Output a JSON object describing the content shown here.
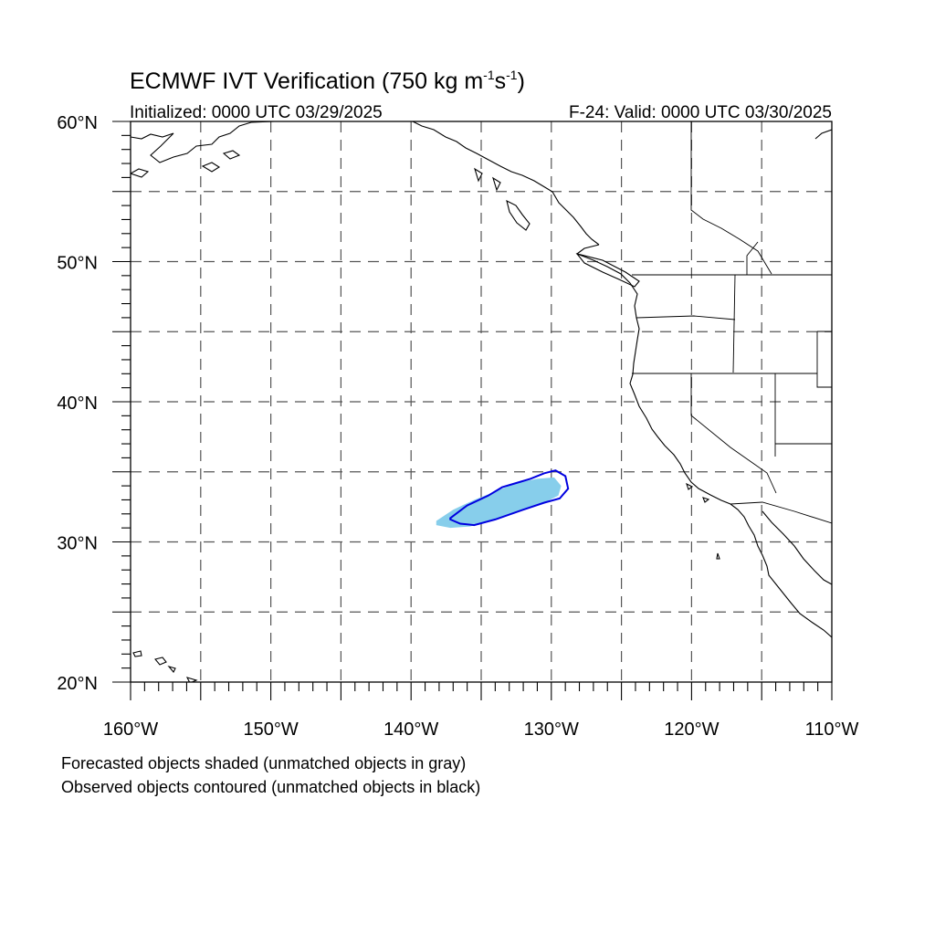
{
  "title": {
    "main": "ECMWF IVT Verification (750 kg m",
    "exp1": "-1",
    "mid": "s",
    "exp2": "-1",
    "end": ")"
  },
  "initialized": "Initialized: 0000 UTC 03/29/2025",
  "valid": "F-24: Valid: 0000 UTC 03/30/2025",
  "map": {
    "lon_range": [
      -160,
      -110
    ],
    "lat_range": [
      20,
      60
    ],
    "grid_step_deg": 5,
    "lat_labels": [
      "20°N",
      "30°N",
      "40°N",
      "50°N",
      "60°N"
    ],
    "lon_labels": [
      "160°W",
      "150°W",
      "140°W",
      "130°W",
      "120°W",
      "110°W"
    ]
  },
  "objects": {
    "forecast_color": "#87ceeb",
    "observed_color": "#0000e0",
    "forecast_object": [
      [
        -138.2,
        31.5
      ],
      [
        -137.0,
        32.3
      ],
      [
        -135.5,
        33.0
      ],
      [
        -134.0,
        33.6
      ],
      [
        -132.5,
        34.2
      ],
      [
        -131.0,
        34.5
      ],
      [
        -129.8,
        34.6
      ],
      [
        -129.3,
        34.0
      ],
      [
        -129.5,
        33.3
      ],
      [
        -130.5,
        32.8
      ],
      [
        -132.0,
        32.3
      ],
      [
        -134.0,
        31.6
      ],
      [
        -135.8,
        31.1
      ],
      [
        -137.2,
        31.0
      ],
      [
        -138.2,
        31.2
      ]
    ],
    "observed_object": [
      [
        -137.2,
        31.7
      ],
      [
        -136.0,
        32.6
      ],
      [
        -134.5,
        33.3
      ],
      [
        -133.5,
        33.9
      ],
      [
        -132.5,
        34.2
      ],
      [
        -131.5,
        34.5
      ],
      [
        -130.5,
        34.9
      ],
      [
        -129.7,
        35.1
      ],
      [
        -129.0,
        34.7
      ],
      [
        -128.8,
        33.8
      ],
      [
        -129.4,
        33.1
      ],
      [
        -130.5,
        32.8
      ],
      [
        -132.0,
        32.3
      ],
      [
        -134.0,
        31.6
      ],
      [
        -135.5,
        31.2
      ],
      [
        -136.5,
        31.3
      ],
      [
        -137.2,
        31.6
      ]
    ]
  },
  "notes": [
    "Forecasted objects shaded (unmatched objects in gray)",
    "Observed objects contoured (unmatched objects in black)"
  ]
}
